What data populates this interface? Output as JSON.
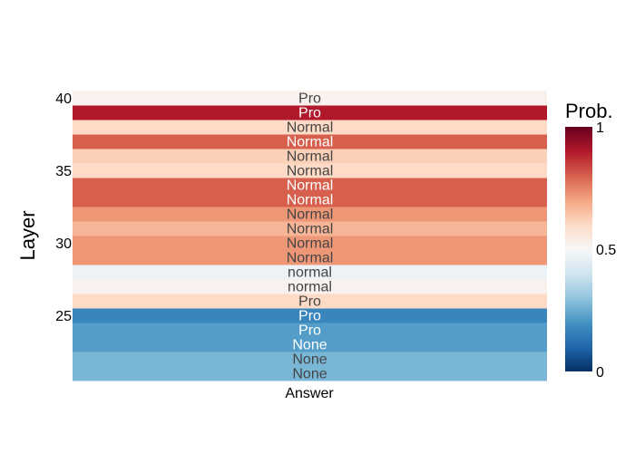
{
  "chart_data": {
    "type": "heatmap",
    "x_categories": [
      "Answer"
    ],
    "ylabel": "Layer",
    "y_ticks": [
      25,
      30,
      35,
      40
    ],
    "layers": [
      21,
      22,
      23,
      24,
      25,
      26,
      27,
      28,
      29,
      30,
      31,
      32,
      33,
      34,
      35,
      36,
      37,
      38,
      39,
      40
    ],
    "labels": [
      "None",
      "None",
      "None",
      "Pro",
      "Pro",
      "Pro",
      "normal",
      "normal",
      "Normal",
      "Normal",
      "Normal",
      "Normal",
      "Normal",
      "Normal",
      "Normal",
      "Normal",
      "Normal",
      "Normal",
      "Pro",
      "Pro"
    ],
    "values": [
      0.27,
      0.27,
      0.22,
      0.22,
      0.17,
      0.6,
      0.52,
      0.47,
      0.72,
      0.72,
      0.67,
      0.72,
      0.8,
      0.8,
      0.6,
      0.62,
      0.8,
      0.6,
      0.9,
      0.52
    ],
    "colorscale": [
      "#053061",
      "#2166ac",
      "#4393c3",
      "#92c5de",
      "#d1e5f0",
      "#f7f7f7",
      "#fddbc7",
      "#f4a582",
      "#d6604d",
      "#b2182b",
      "#67001f"
    ],
    "colorbar": {
      "title": "Prob.",
      "ticks": [
        "0",
        "0.5",
        "1"
      ],
      "range": [
        0,
        1
      ]
    }
  }
}
